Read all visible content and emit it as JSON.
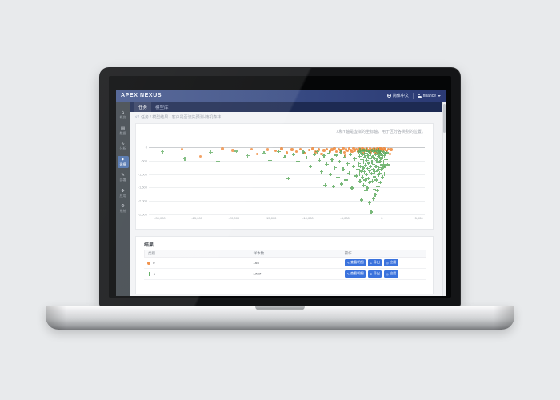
{
  "app": {
    "brand": "APEX NEXUS",
    "topbar": {
      "language": "简体中文",
      "user": "finance"
    },
    "nav": {
      "tabs": [
        {
          "label": "任务",
          "active": true
        },
        {
          "label": "模型库",
          "active": false
        }
      ]
    },
    "sidebar": {
      "items": [
        {
          "label": "概览",
          "icon": "home-icon",
          "glyph": "⌂",
          "active": false
        },
        {
          "label": "数据",
          "icon": "database-icon",
          "glyph": "▤",
          "active": false
        },
        {
          "label": "分析",
          "icon": "analytics-icon",
          "glyph": "∿",
          "active": false
        },
        {
          "label": "建模",
          "icon": "modeling-icon",
          "glyph": "✦",
          "active": true
        },
        {
          "label": "部署",
          "icon": "pen-icon",
          "glyph": "✎",
          "active": false
        },
        {
          "label": "应用",
          "icon": "apps-icon",
          "glyph": "❖",
          "active": false
        },
        {
          "label": "系统",
          "icon": "gear-icon",
          "glyph": "⚙",
          "active": false
        }
      ]
    },
    "breadcrumb": {
      "text": "任务 / 模型结果 - 客户是否流失预测-随机森林"
    },
    "results": {
      "title": "结果",
      "columns": [
        "类别",
        "样本数",
        "操作"
      ],
      "rows": [
        {
          "marker": "orange-circle",
          "label": "0",
          "count": "165",
          "actions": [
            {
              "label": "查看明细",
              "icon": "detail-icon",
              "glyph": "✎"
            },
            {
              "label": "导出",
              "icon": "export-icon",
              "glyph": "↧"
            },
            {
              "label": "应用",
              "icon": "apply-icon",
              "glyph": "◎"
            }
          ]
        },
        {
          "marker": "green-plus",
          "label": "1",
          "count": "1727",
          "actions": [
            {
              "label": "查看明细",
              "icon": "detail-icon",
              "glyph": "✎"
            },
            {
              "label": "导出",
              "icon": "export-icon",
              "glyph": "↧"
            },
            {
              "label": "应用",
              "icon": "apply-icon",
              "glyph": "◎"
            }
          ]
        }
      ],
      "pager_dots": "·····"
    }
  },
  "colors": {
    "header_gradient_left": "#46598d",
    "header_gradient_right": "#2b3a74",
    "navbar": "#1d2a52",
    "sidebar": "#3f464c",
    "sidebar_active": "#4c70ab",
    "button_blue": "#3b73dd",
    "class0_orange": "#f0883a",
    "class1_green": "#58a85a",
    "content_bg": "#f2f3f5"
  },
  "chart_data": {
    "type": "scatter",
    "title": "",
    "xlabel": "",
    "ylabel": "",
    "annotation": "X和Y轴是虚拟的坐标轴，用于区分各类别的位置。",
    "xlim": [
      -31500,
      5800
    ],
    "ylim": [
      -2500,
      0
    ],
    "xticks": [
      -30000,
      -25000,
      -20000,
      -15000,
      -10000,
      -5000,
      0,
      5000
    ],
    "yticks": [
      0,
      -500,
      -1000,
      -1500,
      -2000,
      -2500
    ],
    "grid": "horizontal",
    "legend_position": "none",
    "series": [
      {
        "name": "0",
        "marker": "circle",
        "color": "#f0883a",
        "points": [
          [
            -27000,
            -90
          ],
          [
            -24500,
            -360
          ],
          [
            -21500,
            -70
          ],
          [
            -20100,
            -130
          ],
          [
            -17600,
            -80
          ],
          [
            -16800,
            -260
          ],
          [
            -15400,
            -95
          ],
          [
            -14300,
            -140
          ],
          [
            -13500,
            -65
          ],
          [
            -12800,
            -215
          ],
          [
            -12100,
            -95
          ],
          [
            -11500,
            -165
          ],
          [
            -11000,
            -75
          ],
          [
            -10400,
            -235
          ],
          [
            -9800,
            -115
          ],
          [
            -9300,
            -65
          ],
          [
            -8900,
            -185
          ],
          [
            -8500,
            -95
          ],
          [
            -8100,
            -265
          ],
          [
            -7800,
            -125
          ],
          [
            -7400,
            -75
          ],
          [
            -7000,
            -155
          ],
          [
            -6700,
            -95
          ],
          [
            -6400,
            -45
          ],
          [
            -6100,
            -175
          ],
          [
            -5800,
            -85
          ],
          [
            -5500,
            -125
          ],
          [
            -5200,
            -55
          ],
          [
            -5000,
            -205
          ],
          [
            -4800,
            -95
          ],
          [
            -4600,
            -145
          ],
          [
            -4400,
            -65
          ],
          [
            -4200,
            -105
          ],
          [
            -4000,
            -175
          ],
          [
            -3800,
            -55
          ],
          [
            -3600,
            -125
          ],
          [
            -3400,
            -85
          ],
          [
            -3200,
            -155
          ],
          [
            -3000,
            -65
          ],
          [
            -2800,
            -115
          ],
          [
            -2600,
            -45
          ],
          [
            -2400,
            -95
          ],
          [
            -2200,
            -145
          ],
          [
            -2000,
            -65
          ],
          [
            -1800,
            -105
          ],
          [
            -1600,
            -55
          ],
          [
            -1400,
            -125
          ],
          [
            -1200,
            -85
          ],
          [
            -1000,
            -45
          ],
          [
            -900,
            -155
          ],
          [
            -800,
            -75
          ],
          [
            -700,
            -115
          ],
          [
            -600,
            -55
          ],
          [
            -500,
            -95
          ],
          [
            -400,
            -135
          ],
          [
            -300,
            -65
          ],
          [
            -200,
            -105
          ],
          [
            -100,
            -45
          ],
          [
            0,
            -85
          ],
          [
            150,
            -125
          ],
          [
            300,
            -65
          ],
          [
            500,
            -95
          ],
          [
            700,
            -145
          ],
          [
            900,
            -75
          ],
          [
            1100,
            -265
          ],
          [
            1300,
            -95
          ],
          [
            -350,
            -185
          ],
          [
            -750,
            -225
          ],
          [
            -1500,
            -195
          ],
          [
            -2500,
            -235
          ],
          [
            -4900,
            -315
          ]
        ]
      },
      {
        "name": "1",
        "marker": "plus",
        "color": "#58a85a",
        "points": [
          [
            -29500,
            -160
          ],
          [
            -26500,
            -430
          ],
          [
            -23000,
            -190
          ],
          [
            -22000,
            -530
          ],
          [
            -19500,
            -140
          ],
          [
            -18000,
            -310
          ],
          [
            -15800,
            -210
          ],
          [
            -15000,
            -490
          ],
          [
            -13800,
            -150
          ],
          [
            -13000,
            -360
          ],
          [
            -12500,
            -1160
          ],
          [
            -11800,
            -260
          ],
          [
            -11200,
            -510
          ],
          [
            -10500,
            -170
          ],
          [
            -10000,
            -390
          ],
          [
            -9500,
            -710
          ],
          [
            -9000,
            -260
          ],
          [
            -8600,
            -160
          ],
          [
            -8300,
            -490
          ],
          [
            -8000,
            -910
          ],
          [
            -7700,
            -310
          ],
          [
            -7500,
            -1410
          ],
          [
            -7300,
            -630
          ],
          [
            -7000,
            -210
          ],
          [
            -6800,
            -1010
          ],
          [
            -6600,
            -460
          ],
          [
            -6400,
            -1460
          ],
          [
            -6200,
            -760
          ],
          [
            -6000,
            -290
          ],
          [
            -5800,
            -1110
          ],
          [
            -5600,
            -530
          ],
          [
            -5400,
            -190
          ],
          [
            -5300,
            -1360
          ],
          [
            -5100,
            -810
          ],
          [
            -4900,
            -360
          ],
          [
            -4700,
            -1210
          ],
          [
            -4500,
            -610
          ],
          [
            -4300,
            -960
          ],
          [
            -4100,
            -260
          ],
          [
            -3900,
            -1510
          ],
          [
            -3700,
            -710
          ],
          [
            -3500,
            -430
          ],
          [
            -3300,
            -1060
          ],
          [
            -3100,
            -830
          ],
          [
            -3000,
            -160
          ],
          [
            -2950,
            -610
          ],
          [
            -2900,
            -990
          ],
          [
            -2850,
            -330
          ],
          [
            -2800,
            -1260
          ],
          [
            -2750,
            -710
          ],
          [
            -2700,
            -190
          ],
          [
            -2650,
            -890
          ],
          [
            -2600,
            -1960
          ],
          [
            -2550,
            -460
          ],
          [
            -2500,
            -1110
          ],
          [
            -2450,
            -270
          ],
          [
            -2400,
            -770
          ],
          [
            -2350,
            -1410
          ],
          [
            -2300,
            -550
          ],
          [
            -2250,
            -130
          ],
          [
            -2200,
            -910
          ],
          [
            -2150,
            -360
          ],
          [
            -2100,
            -1210
          ],
          [
            -2050,
            -660
          ],
          [
            -2000,
            -210
          ],
          [
            -1950,
            -1010
          ],
          [
            -1900,
            -490
          ],
          [
            -1850,
            -1510
          ],
          [
            -1800,
            -790
          ],
          [
            -1750,
            -310
          ],
          [
            -1700,
            -1160
          ],
          [
            -1650,
            -590
          ],
          [
            -1600,
            -160
          ],
          [
            -1550,
            -880
          ],
          [
            -1500,
            -1310
          ],
          [
            -1450,
            -430
          ],
          [
            -1400,
            -710
          ],
          [
            -1350,
            -250
          ],
          [
            -1300,
            -2400
          ],
          [
            -1250,
            -970
          ],
          [
            -1200,
            -540
          ],
          [
            -1150,
            -1260
          ],
          [
            -1100,
            -350
          ],
          [
            -1050,
            -830
          ],
          [
            -1000,
            -150
          ],
          [
            -950,
            -630
          ],
          [
            -900,
            -1090
          ],
          [
            -850,
            -410
          ],
          [
            -800,
            -910
          ],
          [
            -750,
            -1760
          ],
          [
            -700,
            -270
          ],
          [
            -650,
            -710
          ],
          [
            -600,
            -1210
          ],
          [
            -550,
            -490
          ],
          [
            -500,
            -160
          ],
          [
            -450,
            -860
          ],
          [
            -400,
            -570
          ],
          [
            -350,
            -1030
          ],
          [
            -300,
            -340
          ],
          [
            -250,
            -750
          ],
          [
            -200,
            -190
          ],
          [
            -150,
            -960
          ],
          [
            -100,
            -530
          ],
          [
            -50,
            -1310
          ],
          [
            0,
            -410
          ],
          [
            50,
            -810
          ],
          [
            100,
            -260
          ],
          [
            150,
            -650
          ],
          [
            200,
            -1110
          ],
          [
            250,
            -390
          ],
          [
            300,
            -730
          ],
          [
            350,
            -170
          ],
          [
            400,
            -550
          ],
          [
            450,
            -990
          ],
          [
            500,
            -310
          ],
          [
            550,
            -690
          ],
          [
            600,
            -230
          ],
          [
            -2000,
            -1610
          ],
          [
            -900,
            -1560
          ],
          [
            -400,
            -1460
          ],
          [
            -1700,
            -140
          ],
          [
            -800,
            -100
          ],
          [
            -300,
            -90
          ],
          [
            -1200,
            -110
          ],
          [
            -2400,
            -110
          ],
          [
            -600,
            -130
          ],
          [
            -1900,
            -100
          ],
          [
            -100,
            -140
          ],
          [
            -2800,
            -100
          ],
          [
            -500,
            -1610
          ],
          [
            -1000,
            -1910
          ],
          [
            -1500,
            -2060
          ],
          [
            -350,
            -100
          ],
          [
            -50,
            -210
          ],
          [
            -150,
            -310
          ],
          [
            700,
            -450
          ],
          [
            800,
            -200
          ],
          [
            900,
            -650
          ]
        ]
      }
    ]
  }
}
